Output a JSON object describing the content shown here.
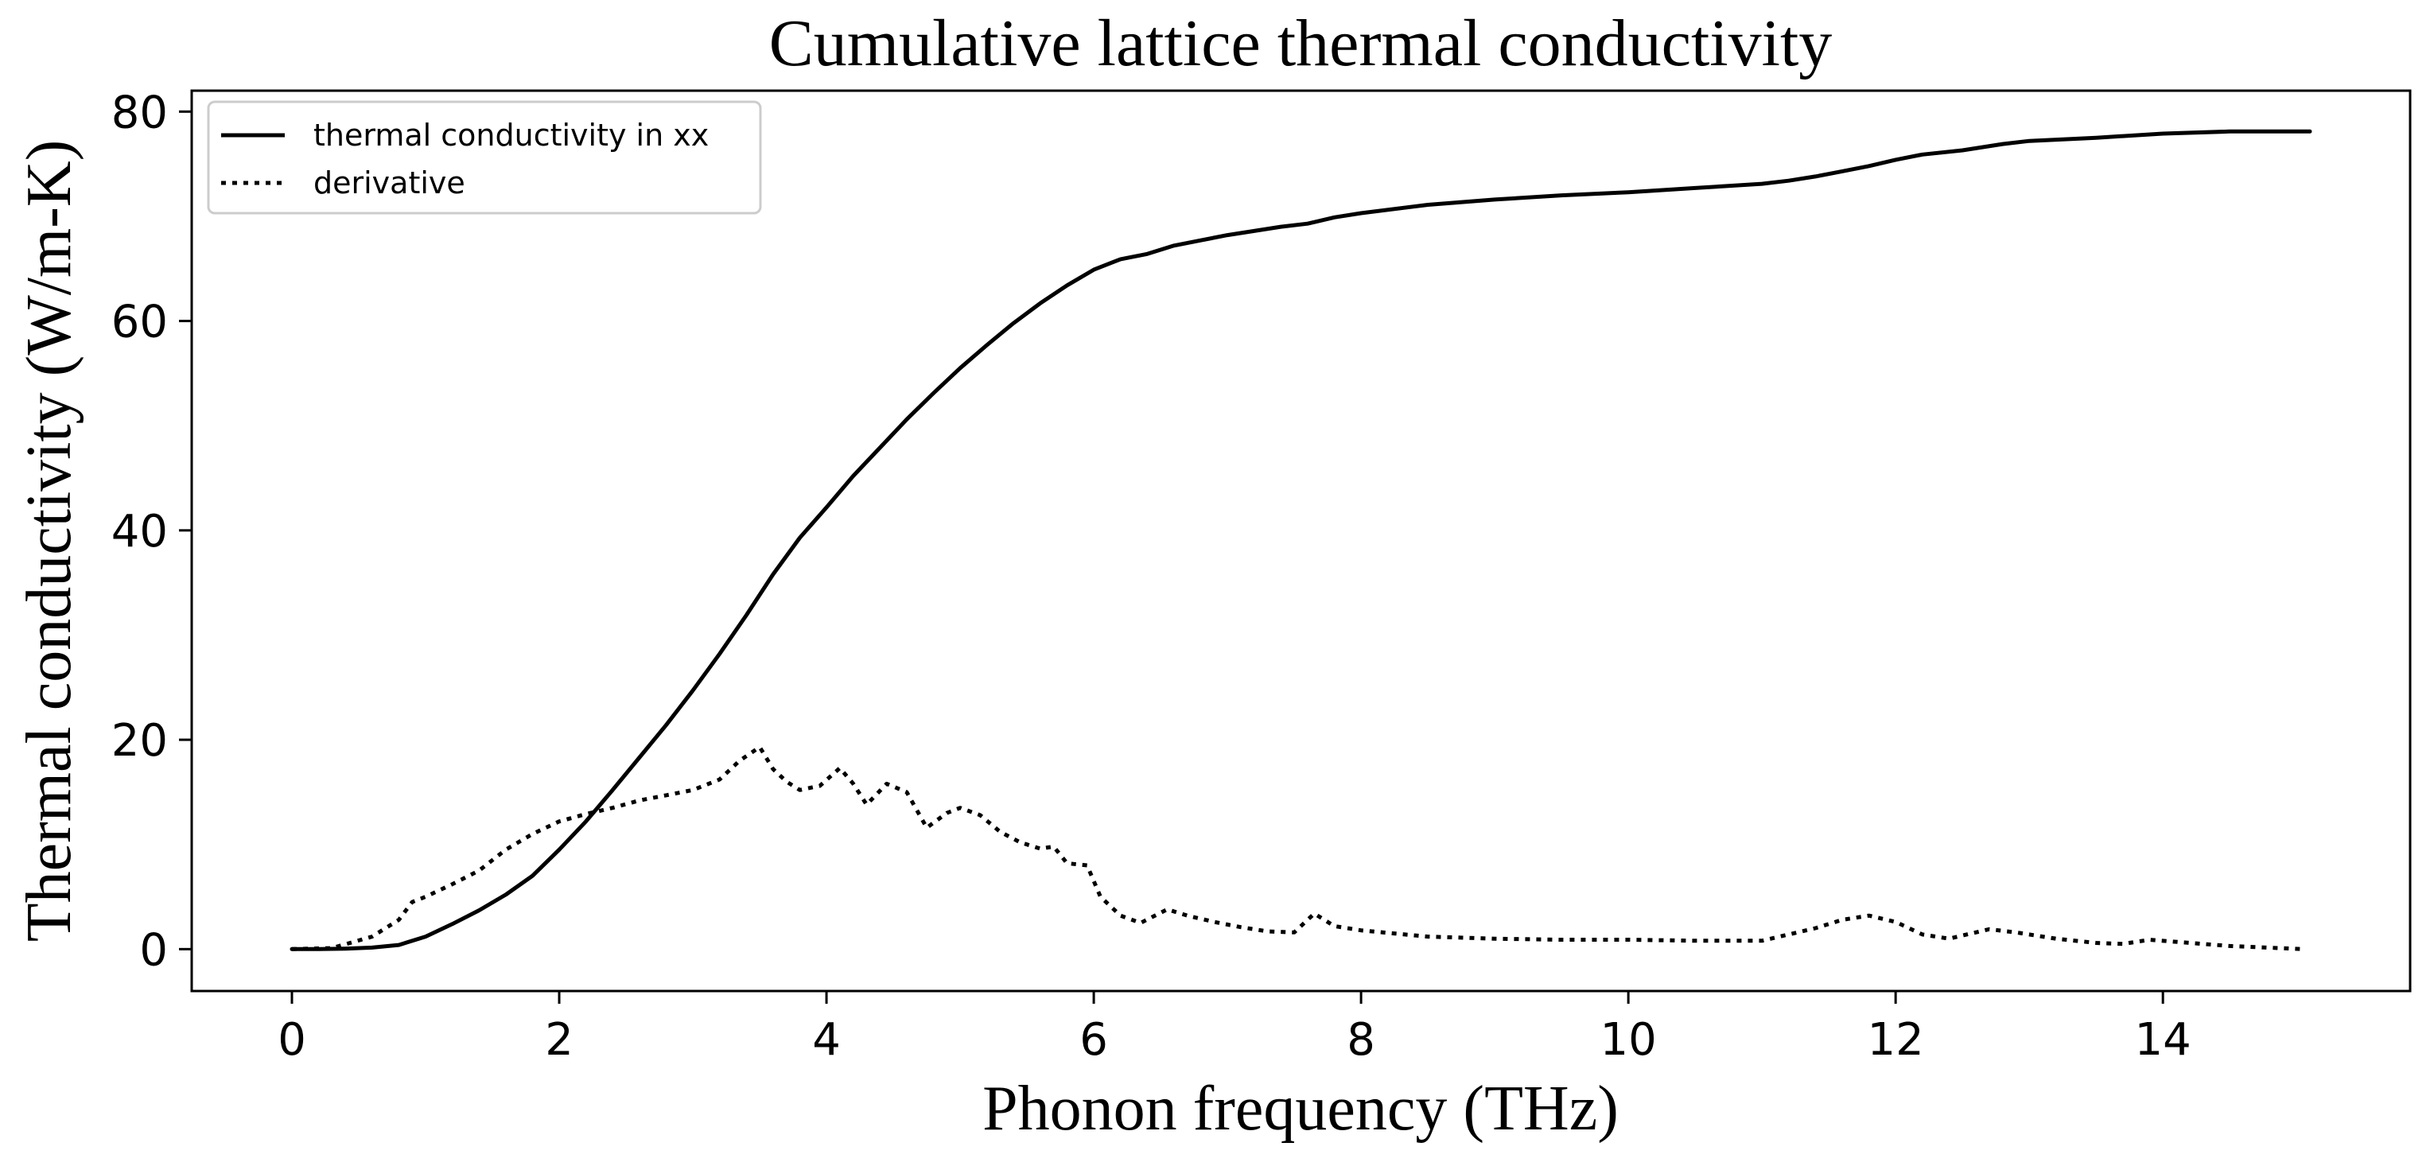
{
  "chart_data": {
    "type": "line",
    "title": "Cumulative lattice thermal conductivity",
    "xlabel": "Phonon frequency (THz)",
    "ylabel": "Thermal conductivity (W/m-K)",
    "xlim": [
      -0.75,
      15.85
    ],
    "ylim": [
      -4,
      82
    ],
    "xticks": [
      0,
      2,
      4,
      6,
      8,
      10,
      12,
      14
    ],
    "yticks": [
      0,
      20,
      40,
      60,
      80
    ],
    "grid": false,
    "legend_position": "top-left",
    "series": [
      {
        "name": "thermal conductivity in xx",
        "style": "solid",
        "color": "#000000",
        "x": [
          0,
          0.2,
          0.4,
          0.6,
          0.8,
          1.0,
          1.2,
          1.4,
          1.6,
          1.8,
          2.0,
          2.2,
          2.4,
          2.6,
          2.8,
          3.0,
          3.2,
          3.4,
          3.6,
          3.8,
          4.0,
          4.2,
          4.4,
          4.6,
          4.8,
          5.0,
          5.2,
          5.4,
          5.6,
          5.8,
          6.0,
          6.2,
          6.4,
          6.6,
          6.8,
          7.0,
          7.2,
          7.4,
          7.6,
          7.8,
          8.0,
          8.5,
          9.0,
          9.5,
          10.0,
          10.5,
          11.0,
          11.2,
          11.4,
          11.6,
          11.8,
          12.0,
          12.2,
          12.5,
          12.8,
          13.0,
          13.5,
          14.0,
          14.5,
          15.1
        ],
        "y": [
          0,
          0,
          0.05,
          0.15,
          0.4,
          1.2,
          2.4,
          3.7,
          5.2,
          7.0,
          9.5,
          12.2,
          15.2,
          18.3,
          21.4,
          24.7,
          28.2,
          31.9,
          35.8,
          39.3,
          42.2,
          45.2,
          47.9,
          50.6,
          53.1,
          55.5,
          57.7,
          59.8,
          61.7,
          63.4,
          64.9,
          65.9,
          66.4,
          67.2,
          67.7,
          68.2,
          68.6,
          69.0,
          69.3,
          69.9,
          70.3,
          71.1,
          71.6,
          72.0,
          72.3,
          72.7,
          73.1,
          73.4,
          73.8,
          74.3,
          74.8,
          75.4,
          75.9,
          76.3,
          76.9,
          77.2,
          77.5,
          77.9,
          78.1,
          78.1
        ]
      },
      {
        "name": "derivative",
        "style": "dotted",
        "color": "#000000",
        "x": [
          0,
          0.3,
          0.6,
          0.8,
          0.9,
          1.0,
          1.2,
          1.4,
          1.6,
          1.8,
          2.0,
          2.2,
          2.4,
          2.6,
          2.8,
          3.0,
          3.2,
          3.35,
          3.5,
          3.6,
          3.7,
          3.8,
          3.95,
          4.1,
          4.2,
          4.3,
          4.45,
          4.6,
          4.75,
          4.9,
          5.0,
          5.15,
          5.3,
          5.45,
          5.6,
          5.7,
          5.8,
          5.95,
          6.05,
          6.2,
          6.35,
          6.55,
          6.7,
          6.9,
          7.1,
          7.3,
          7.5,
          7.65,
          7.8,
          8.0,
          8.5,
          9.0,
          9.5,
          10.0,
          10.5,
          11.0,
          11.2,
          11.4,
          11.6,
          11.8,
          12.0,
          12.2,
          12.4,
          12.7,
          12.9,
          13.2,
          13.5,
          13.7,
          13.9,
          14.2,
          14.5,
          15.05
        ],
        "y": [
          0,
          0.1,
          1.2,
          2.8,
          4.5,
          5.0,
          6.2,
          7.5,
          9.5,
          11.0,
          12.2,
          12.9,
          13.5,
          14.2,
          14.7,
          15.2,
          16.2,
          18.0,
          19.3,
          17.2,
          16.0,
          15.2,
          15.6,
          17.3,
          15.8,
          13.8,
          15.8,
          15.0,
          11.6,
          13.0,
          13.5,
          12.8,
          11.2,
          10.2,
          9.6,
          9.8,
          8.2,
          8.0,
          5.0,
          3.2,
          2.5,
          3.8,
          3.2,
          2.6,
          2.1,
          1.7,
          1.6,
          3.4,
          2.2,
          1.8,
          1.2,
          1.0,
          0.9,
          0.9,
          0.8,
          0.8,
          1.4,
          2.0,
          2.8,
          3.2,
          2.6,
          1.4,
          1.0,
          1.9,
          1.6,
          1.0,
          0.6,
          0.5,
          0.9,
          0.6,
          0.3,
          0.0
        ]
      }
    ]
  }
}
